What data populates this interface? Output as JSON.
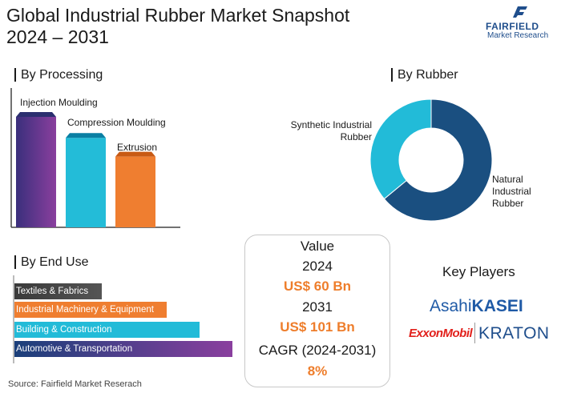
{
  "title_line1": "Global Industrial Rubber Market Snapshot",
  "title_line2": "2024 – 2031",
  "logo": {
    "name": "FAIRFIELD",
    "sub": "Market Research",
    "icon": "fairfield-logo-icon"
  },
  "sections": {
    "processing": "By Processing",
    "rubber": "By Rubber",
    "end_use": "By End Use",
    "key_players": "Key Players"
  },
  "chart_data": [
    {
      "type": "bar",
      "title": "By Processing",
      "categories": [
        "Injection Moulding",
        "Compression Moulding",
        "Extrusion"
      ],
      "values": [
        100,
        81,
        64
      ],
      "colors": [
        "#5d3b8c",
        "#23bcd8",
        "#ef7e30"
      ]
    },
    {
      "type": "pie",
      "title": "By Rubber",
      "labels": [
        "Natural Industrial Rubber",
        "Synthetic Industrial Rubber"
      ],
      "values": [
        64,
        36
      ],
      "colors": [
        "#1a4f80",
        "#22bbd8"
      ],
      "hole": true
    },
    {
      "type": "bar",
      "orientation": "horizontal",
      "title": "By End Use",
      "categories": [
        "Textiles & Fabrics",
        "Industrial Machinery & Equipment",
        "Building & Construction",
        "Automotive & Transportation"
      ],
      "values": [
        40,
        70,
        85,
        100
      ],
      "colors": [
        "#3d3d3d",
        "#ef7e30",
        "#23bcd8",
        "#5d3b8c"
      ]
    }
  ],
  "labels": {
    "processing": [
      "Injection Moulding",
      "Compression Moulding",
      "Extrusion"
    ],
    "synthetic": [
      "Synthetic Industrial",
      "Rubber"
    ],
    "natural": [
      "Natural",
      "Industrial",
      "Rubber"
    ],
    "end_use": [
      "Textiles & Fabrics",
      "Industrial Machinery & Equipment",
      "Building & Construction",
      "Automotive & Transportation"
    ]
  },
  "value_box": {
    "heading": "Value",
    "year1": "2024",
    "value1": "US$ 60 Bn",
    "year2": "2031",
    "value2": "US$ 101 Bn",
    "cagr_label": "CAGR (2024-2031)",
    "cagr_value": "8%"
  },
  "key_players": {
    "asahi_a": "Asahi",
    "asahi_b": "KASEI",
    "exxon": "ExxonMobil",
    "kraton": "KRATON"
  },
  "colors": {
    "orange": "#ee7d2b",
    "navy": "#1a4f80",
    "cyan": "#22bbd8",
    "purple": "#5d3b8c",
    "asahi_blue": "#1f5aa6",
    "exxon_red": "#e2211c"
  },
  "source": "Source: Fairfield Market Reserach"
}
